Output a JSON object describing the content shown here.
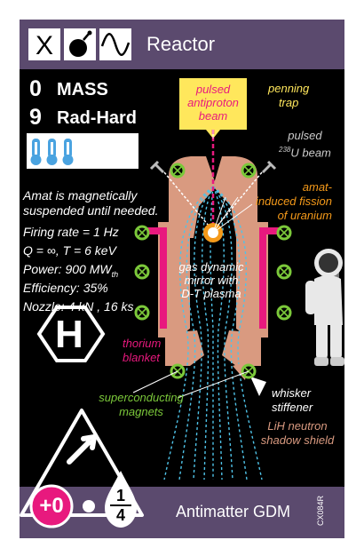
{
  "header": {
    "title": "Reactor",
    "icons": [
      "x-icon",
      "bomb-icon",
      "sine-wave-icon"
    ],
    "icon_x_label": "X"
  },
  "stats": {
    "mass_value": "0",
    "mass_label": "MASS",
    "radhard_value": "9",
    "radhard_label": "Rad-Hard",
    "thermometer_count": 3
  },
  "specs": {
    "line1": "Amat is magnetically",
    "line2": "suspended until needed.",
    "firing_rate": "Firing rate = 1 Hz",
    "q_t": "Q = ∞, T = 6 keV",
    "power_prefix": "Power: 900 MW",
    "power_sub": "th",
    "efficiency": "Efficiency: 35%",
    "nozzle": "Nozzle: 4 kN , 16 ks"
  },
  "badge": {
    "letter": "H"
  },
  "diagram": {
    "beam_label": [
      "pulsed",
      "antiproton",
      "beam"
    ],
    "penning_label": [
      "penning",
      "trap"
    ],
    "u_beam_line1": "pulsed",
    "u_beam_sup": "238",
    "u_beam_rest": "U beam",
    "fission_label": [
      "amat-",
      "induced fission",
      "of uranium"
    ],
    "plasma_label": [
      "gas dynamic",
      "mirror with",
      "D-T plasma"
    ],
    "thorium_label": [
      "thorium",
      "blanket"
    ],
    "magnets_label": [
      "superconducting",
      "magnets"
    ],
    "whisker_label": [
      "whisker",
      "stiffener"
    ],
    "shield_label": [
      "LiH neutron",
      "shadow shield"
    ]
  },
  "footer": {
    "bonus": "+0",
    "fraction_numerator": "1",
    "fraction_denominator": "4",
    "card_name": "Antimatter GDM",
    "card_id": "CX084R"
  },
  "colors": {
    "purple": "#5b4a6e",
    "black": "#000000",
    "salmon": "#d99a80",
    "magenta": "#e8197e",
    "yellow": "#ffe75c",
    "green": "#7bc83a",
    "orange": "#f59a1a",
    "cyan": "#4fc3e8",
    "thermo": "#4aa3e0"
  }
}
